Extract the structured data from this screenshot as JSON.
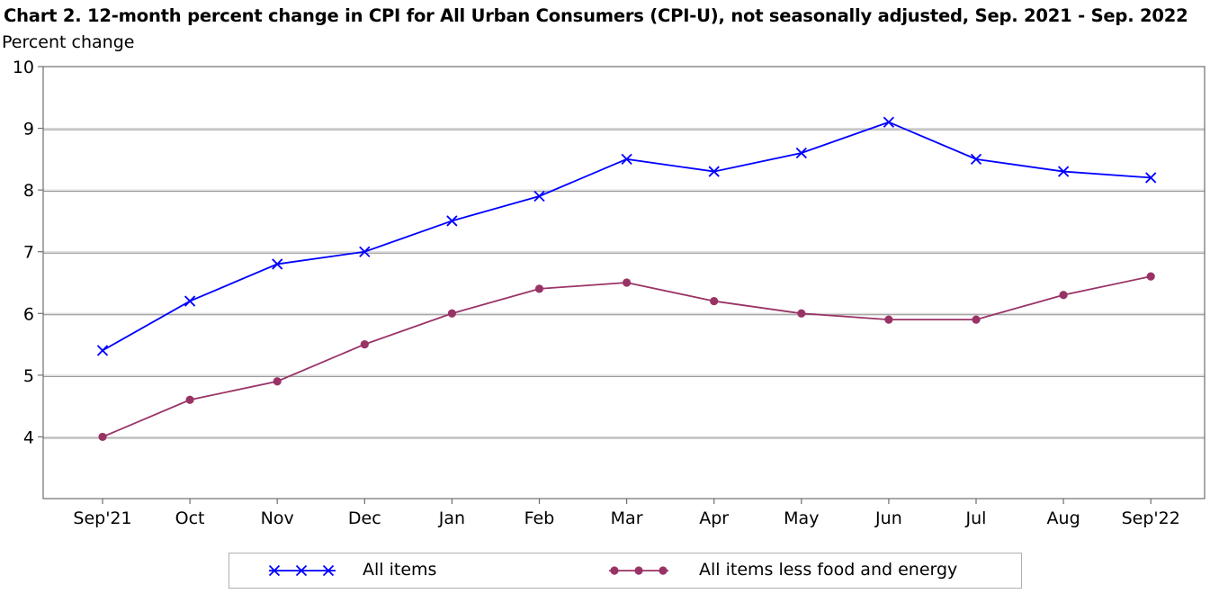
{
  "chart_data": {
    "type": "line",
    "title": "Chart 2. 12-month percent change in CPI for All Urban Consumers (CPI-U), not seasonally adjusted, Sep. 2021 - Sep. 2022",
    "ylabel": "Percent change",
    "xlabel": "",
    "categories": [
      "Sep'21",
      "Oct",
      "Nov",
      "Dec",
      "Jan",
      "Feb",
      "Mar",
      "Apr",
      "May",
      "Jun",
      "Jul",
      "Aug",
      "Sep'22"
    ],
    "ylim": [
      3,
      10
    ],
    "yticks": [
      4,
      5,
      6,
      7,
      8,
      9,
      10
    ],
    "grid": "horizontal",
    "legend_position": "bottom",
    "series": [
      {
        "name": "All items",
        "color": "#0000ff",
        "marker": "x",
        "values": [
          5.4,
          6.2,
          6.8,
          7.0,
          7.5,
          7.9,
          8.5,
          8.3,
          8.6,
          9.1,
          8.5,
          8.3,
          8.2
        ]
      },
      {
        "name": "All items less food and energy",
        "color": "#993366",
        "marker": "circle",
        "values": [
          4.0,
          4.6,
          4.9,
          5.5,
          6.0,
          6.4,
          6.5,
          6.2,
          6.0,
          5.9,
          5.9,
          6.3,
          6.6
        ]
      }
    ]
  }
}
